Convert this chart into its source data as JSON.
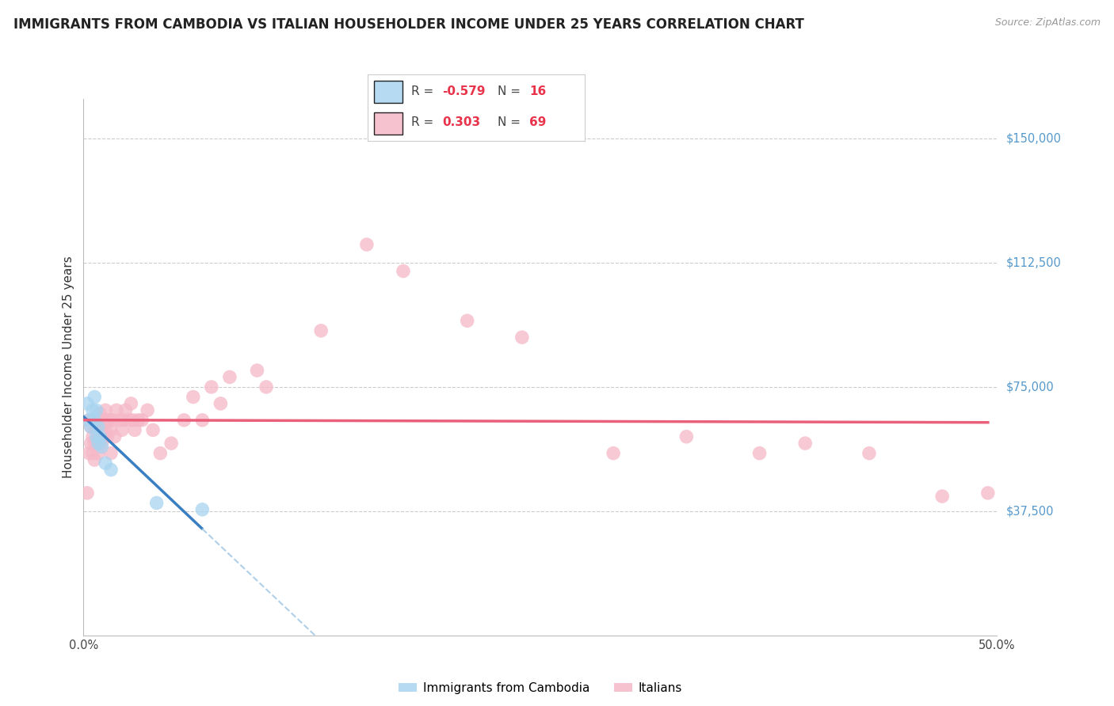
{
  "title": "IMMIGRANTS FROM CAMBODIA VS ITALIAN HOUSEHOLDER INCOME UNDER 25 YEARS CORRELATION CHART",
  "source": "Source: ZipAtlas.com",
  "ylabel": "Householder Income Under 25 years",
  "ylabel_ticks": [
    "$37,500",
    "$75,000",
    "$112,500",
    "$150,000"
  ],
  "ylabel_values": [
    37500,
    75000,
    112500,
    150000
  ],
  "xmin": 0.0,
  "xmax": 0.5,
  "ymin": 0,
  "ymax": 162000,
  "r_cambodia": "-0.579",
  "n_cambodia": "16",
  "r_italian": "0.303",
  "n_italian": "69",
  "cambodia_color": "#a8d4f0",
  "italian_color": "#f5b8c8",
  "cambodia_line_color": "#3a7fc1",
  "cambodia_dash_color": "#b0cfe8",
  "italian_line_color": "#e8607a",
  "cambodia_scatter_x": [
    0.002,
    0.003,
    0.004,
    0.005,
    0.006,
    0.006,
    0.007,
    0.007,
    0.008,
    0.008,
    0.009,
    0.01,
    0.012,
    0.015,
    0.04,
    0.065
  ],
  "cambodia_scatter_y": [
    70000,
    65000,
    63000,
    68000,
    72000,
    65000,
    68000,
    60000,
    63000,
    58000,
    60000,
    57000,
    52000,
    50000,
    40000,
    38000
  ],
  "italian_scatter_x": [
    0.002,
    0.003,
    0.003,
    0.004,
    0.004,
    0.005,
    0.005,
    0.005,
    0.006,
    0.006,
    0.006,
    0.007,
    0.007,
    0.007,
    0.008,
    0.008,
    0.008,
    0.009,
    0.009,
    0.009,
    0.01,
    0.01,
    0.01,
    0.011,
    0.011,
    0.012,
    0.012,
    0.013,
    0.013,
    0.014,
    0.015,
    0.015,
    0.016,
    0.017,
    0.018,
    0.02,
    0.021,
    0.022,
    0.023,
    0.025,
    0.026,
    0.027,
    0.028,
    0.03,
    0.032,
    0.035,
    0.038,
    0.042,
    0.048,
    0.055,
    0.06,
    0.065,
    0.07,
    0.075,
    0.08,
    0.095,
    0.1,
    0.13,
    0.155,
    0.175,
    0.21,
    0.24,
    0.29,
    0.33,
    0.37,
    0.395,
    0.43,
    0.47,
    0.495
  ],
  "italian_scatter_y": [
    43000,
    55000,
    65000,
    58000,
    63000,
    60000,
    65000,
    55000,
    63000,
    58000,
    53000,
    65000,
    58000,
    63000,
    60000,
    55000,
    65000,
    62000,
    67000,
    58000,
    63000,
    58000,
    65000,
    60000,
    65000,
    62000,
    68000,
    65000,
    60000,
    65000,
    62000,
    55000,
    65000,
    60000,
    68000,
    65000,
    62000,
    65000,
    68000,
    65000,
    70000,
    65000,
    62000,
    65000,
    65000,
    68000,
    62000,
    55000,
    58000,
    65000,
    72000,
    65000,
    75000,
    70000,
    78000,
    80000,
    75000,
    92000,
    118000,
    110000,
    95000,
    90000,
    55000,
    60000,
    55000,
    58000,
    55000,
    42000,
    43000
  ],
  "background_color": "#ffffff",
  "grid_color": "#cccccc",
  "title_fontsize": 12,
  "tick_fontsize": 10.5,
  "ylabel_fontsize": 11,
  "source_fontsize": 9,
  "legend_fontsize": 11
}
